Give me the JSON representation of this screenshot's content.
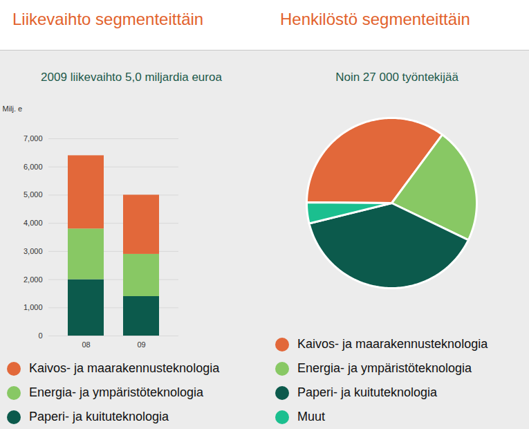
{
  "chart_data": [
    {
      "type": "bar",
      "title": "Liikevaihto segmenteittäin",
      "subtitle": "2009 liikevaihto 5,0 miljardia euroa",
      "ylabel": "Milj. e",
      "categories": [
        "08",
        "09"
      ],
      "series": [
        {
          "name": "Kaivos- ja maarakennusteknologia",
          "color": "#e2683a",
          "values": [
            2600,
            2100
          ]
        },
        {
          "name": "Energia- ja ympäristöteknologia",
          "color": "#88c864",
          "values": [
            1800,
            1500
          ]
        },
        {
          "name": "Paperi- ja kuituteknologia",
          "color": "#0c5a4c",
          "values": [
            2000,
            1400
          ]
        }
      ],
      "stacked": true,
      "ylim": [
        0,
        7000
      ],
      "yticks": [
        0,
        1000,
        2000,
        3000,
        4000,
        5000,
        6000,
        7000
      ],
      "grid": true,
      "legend": "bottom"
    },
    {
      "type": "pie",
      "title": "Henkilöstö segmenteittäin",
      "subtitle": "Noin 27 000 työntekijää",
      "categories": [
        "Kaivos- ja maarakennusteknologia",
        "Energia- ja ympäristöteknologia",
        "Paperi- ja kuituteknologia",
        "Muut"
      ],
      "values": [
        35,
        22,
        39,
        4
      ],
      "colors": [
        "#e2683a",
        "#88c864",
        "#0c5a4c",
        "#1bbf8f"
      ],
      "legend": "bottom"
    }
  ]
}
